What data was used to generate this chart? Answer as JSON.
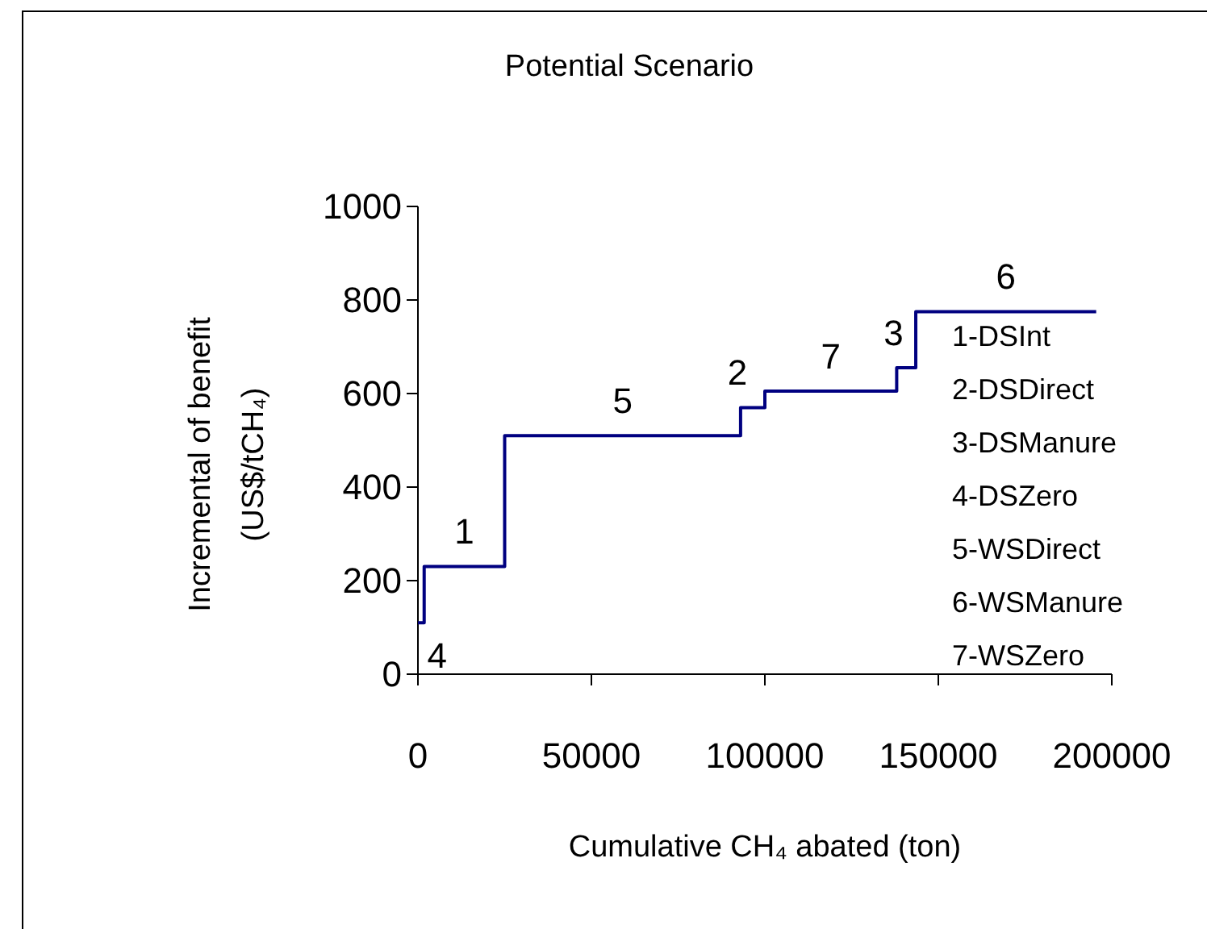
{
  "chart_data": {
    "type": "step",
    "title": "Potential Scenario",
    "xlabel": "Cumulative CH₄ abated (ton)",
    "ylabel": "Incremental of benefit\n(US$/tCH₄)",
    "x": [
      0,
      1800,
      25000,
      93000,
      100000,
      138000,
      143500,
      195500
    ],
    "series": [
      {
        "color": "#000080",
        "values": [
          110,
          230,
          510,
          570,
          605,
          655,
          775,
          775
        ]
      }
    ],
    "xlim": [
      0,
      200000
    ],
    "xticks": [
      0,
      50000,
      100000,
      150000,
      200000
    ],
    "ylim": [
      0,
      1000
    ],
    "yticks": [
      0,
      200,
      400,
      600,
      800,
      1000
    ],
    "grid": false,
    "marker": "none",
    "line_style": "solid",
    "annotations": [
      "4",
      "1",
      "5",
      "2",
      "7",
      "3",
      "6",
      "1-DSInt",
      "2-DSDirect",
      "3-DSManure",
      "4-DSZero",
      "5-WSDirect",
      "6-WSManure",
      "7-WSZero"
    ]
  }
}
